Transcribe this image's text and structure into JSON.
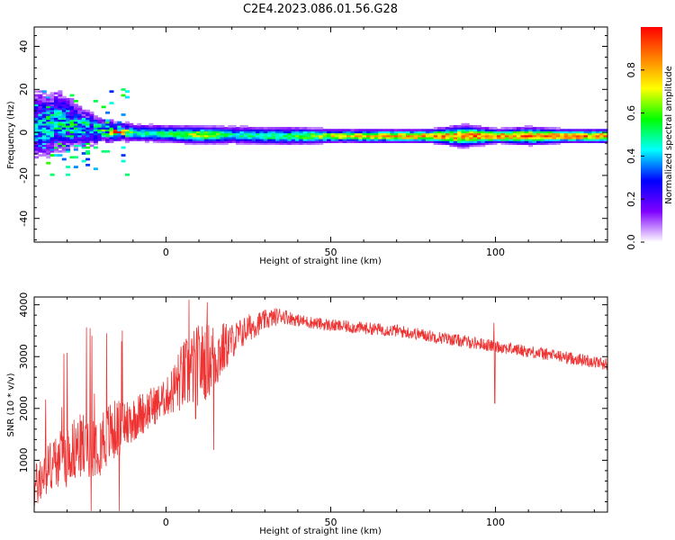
{
  "title": "C2E4.2023.086.01.56.G28",
  "chart_data": [
    {
      "type": "heatmap",
      "xlabel": "Height of straight line (km)",
      "ylabel": "Frequency (Hz)",
      "xlim": [
        -40,
        134
      ],
      "ylim": [
        -51,
        49
      ],
      "xticks": [
        0,
        50,
        100
      ],
      "yticks": [
        -40,
        -20,
        0,
        20,
        40
      ],
      "colorbar": {
        "label": "Normalized spectral amplitude",
        "range": [
          0.0,
          1.0
        ],
        "ticks": [
          "0.0",
          "0.2",
          "0.4",
          "0.6",
          "0.8"
        ],
        "colormap": [
          "#ffffff",
          "#7f00ff",
          "#0000ff",
          "#00ffff",
          "#00ff00",
          "#ffff00",
          "#ff8000",
          "#ff0000"
        ]
      },
      "ridge": [
        {
          "x": -38,
          "f": 3,
          "amp": 0.45,
          "spread": 8
        },
        {
          "x": -32,
          "f": 5,
          "amp": 0.5,
          "spread": 7
        },
        {
          "x": -26,
          "f": 2,
          "amp": 0.45,
          "spread": 5
        },
        {
          "x": -20,
          "f": 0.5,
          "amp": 0.5,
          "spread": 3
        },
        {
          "x": -15,
          "f": 0,
          "amp": 0.9,
          "spread": 2
        },
        {
          "x": -10,
          "f": -0.5,
          "amp": 0.5,
          "spread": 2
        },
        {
          "x": 0,
          "f": -1,
          "amp": 0.55,
          "spread": 2
        },
        {
          "x": 10,
          "f": -1.5,
          "amp": 0.75,
          "spread": 2
        },
        {
          "x": 20,
          "f": -1.5,
          "amp": 0.5,
          "spread": 2
        },
        {
          "x": 30,
          "f": -2,
          "amp": 0.55,
          "spread": 2
        },
        {
          "x": 40,
          "f": -2,
          "amp": 0.6,
          "spread": 2
        },
        {
          "x": 50,
          "f": -2,
          "amp": 0.75,
          "spread": 1.5
        },
        {
          "x": 60,
          "f": -2,
          "amp": 0.8,
          "spread": 1.5
        },
        {
          "x": 70,
          "f": -2,
          "amp": 0.85,
          "spread": 1.5
        },
        {
          "x": 80,
          "f": -2,
          "amp": 0.9,
          "spread": 1.5
        },
        {
          "x": 90,
          "f": -2,
          "amp": 0.9,
          "spread": 2.5
        },
        {
          "x": 100,
          "f": -2,
          "amp": 0.95,
          "spread": 1.5
        },
        {
          "x": 110,
          "f": -2,
          "amp": 0.95,
          "spread": 2
        },
        {
          "x": 120,
          "f": -2,
          "amp": 0.95,
          "spread": 1.5
        },
        {
          "x": 134,
          "f": -2,
          "amp": 0.95,
          "spread": 1.5
        }
      ]
    },
    {
      "type": "line",
      "xlabel": "Height of straight line (km)",
      "ylabel": "SNR (10 * v/v)",
      "xlim": [
        -40,
        134
      ],
      "ylim": [
        0,
        4150
      ],
      "xticks": [
        0,
        50,
        100
      ],
      "yticks": [
        1000,
        2000,
        3000,
        4000
      ],
      "color": "#ee3333",
      "trend": {
        "x": [
          -40,
          -35,
          -30,
          -25,
          -20,
          -15,
          -10,
          -5,
          0,
          5,
          10,
          15,
          20,
          25,
          30,
          35,
          40,
          50,
          60,
          70,
          80,
          90,
          100,
          110,
          120,
          130,
          134
        ],
        "y": [
          450,
          900,
          1150,
          1300,
          1400,
          1600,
          1800,
          2000,
          2200,
          2600,
          2850,
          3000,
          3300,
          3550,
          3700,
          3800,
          3700,
          3600,
          3550,
          3500,
          3400,
          3300,
          3200,
          3100,
          3000,
          2900,
          2850
        ]
      },
      "noise": {
        "x": [
          -40,
          -20,
          -10,
          0,
          5,
          10,
          15,
          20,
          30,
          40,
          134
        ],
        "y": [
          450,
          700,
          450,
          350,
          700,
          800,
          700,
          350,
          200,
          120,
          120
        ]
      },
      "spikes": [
        {
          "x": -31,
          "y": 3050
        },
        {
          "x": -23,
          "y": 3550
        },
        {
          "x": -18,
          "y": 3450
        },
        {
          "x": 7,
          "y": 4100
        },
        {
          "x": 12.5,
          "y": 4050
        },
        {
          "x": 14.5,
          "y": 1200
        },
        {
          "x": 9,
          "y": 1800
        },
        {
          "x": 99.5,
          "y": 3650
        },
        {
          "x": 99.8,
          "y": 2100
        }
      ]
    }
  ]
}
